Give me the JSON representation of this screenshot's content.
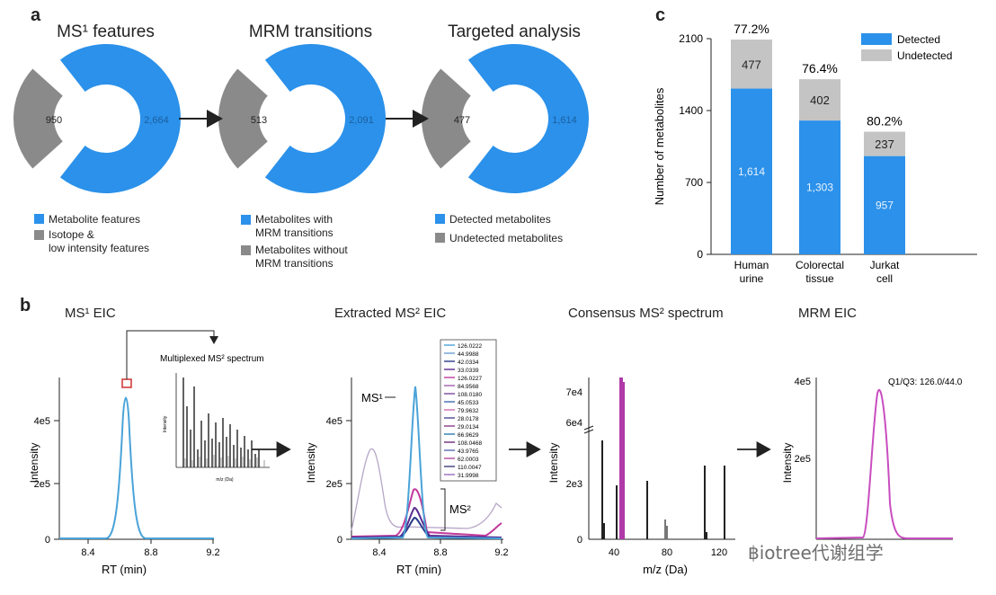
{
  "panels": {
    "a": "a",
    "b": "b",
    "c": "c"
  },
  "colors": {
    "blue": "#2b91ea",
    "gray": "#8a8a8a",
    "lightgray": "#c4c4c4",
    "magenta": "#b03aa8",
    "purple": "#4b2a8a",
    "curve_blue": "#4aa3d8"
  },
  "panel_a": {
    "donuts": [
      {
        "title": "MS¹ features",
        "gray_value": "950",
        "blue_value": "2,664",
        "legend": [
          {
            "label": "Metabolite features",
            "color": "blue"
          },
          {
            "label": "Isotope &\nlow intensity features",
            "color": "gray"
          }
        ]
      },
      {
        "title": "MRM transitions",
        "gray_value": "513",
        "blue_value": "2,091",
        "legend": [
          {
            "label": "Metabolites with\nMRM transitions",
            "color": "blue"
          },
          {
            "label": "Metabolites without\nMRM transitions",
            "color": "gray"
          }
        ]
      },
      {
        "title": "Targeted analysis",
        "gray_value": "477",
        "blue_value": "1,614",
        "legend": [
          {
            "label": "Detected metabolites",
            "color": "blue"
          },
          {
            "label": "Undetected metabolites",
            "color": "gray"
          }
        ]
      }
    ]
  },
  "panel_b": {
    "titles": [
      "MS¹ EIC",
      "Extracted MS² EIC",
      "Consensus MS² spectrum",
      "MRM EIC"
    ],
    "inset_label": "Multiplexed MS² spectrum",
    "inset_xlabel": "m/z (Da)",
    "inset_ylabel": "Intensity",
    "plot1": {
      "ylabel": "Intensity",
      "xlabel": "RT (min)",
      "yticks": [
        "0",
        "2e5",
        "4e5"
      ],
      "xticks": [
        "8.4",
        "8.8",
        "9.2"
      ]
    },
    "plot2": {
      "ylabel": "Intensity",
      "xlabel": "RT (min)",
      "yticks": [
        "0",
        "2e5",
        "4e5"
      ],
      "xticks": [
        "8.4",
        "8.8",
        "9.2"
      ],
      "ms1_label": "MS¹",
      "ms2_label": "MS²",
      "legend": [
        "126.0222",
        "44.9988",
        "42.0334",
        "33.0339",
        "126.0227",
        "84.9568",
        "108.0180",
        "45.0533",
        "79.9632",
        "28.0178",
        "29.0134",
        "66.9629",
        "108.0468",
        "43.9765",
        "62.0003",
        "110.0047",
        "31.9998"
      ]
    },
    "plot3": {
      "ylabel": "Intensity",
      "xlabel": "m/z (Da)",
      "yticks": [
        "0",
        "2e3",
        "6e4",
        "7e4"
      ],
      "xticks": [
        "40",
        "80",
        "120"
      ]
    },
    "plot4": {
      "ylabel": "Intensity",
      "xlabel": "RT (min)",
      "yticks": [
        "2e5",
        "4e5"
      ],
      "annotation": "Q1/Q3: 126.0/44.0"
    }
  },
  "chart_data": {
    "type": "bar",
    "title": "",
    "ylabel": "Number of metabolites",
    "categories": [
      "Human\nurine",
      "Colorectal\ntissue",
      "Jurkat\ncell"
    ],
    "ylim": [
      0,
      2100
    ],
    "yticks": [
      0,
      700,
      1400,
      2100
    ],
    "stacked": true,
    "legend_position": "top-right",
    "series": [
      {
        "name": "Detected",
        "color": "#2b91ea",
        "values": [
          1614,
          1303,
          957
        ]
      },
      {
        "name": "Undetected",
        "color": "#c4c4c4",
        "values": [
          477,
          402,
          237
        ]
      }
    ],
    "percent_labels": [
      "77.2%",
      "76.4%",
      "80.2%"
    ]
  },
  "watermark": "฿iotree代谢组学"
}
